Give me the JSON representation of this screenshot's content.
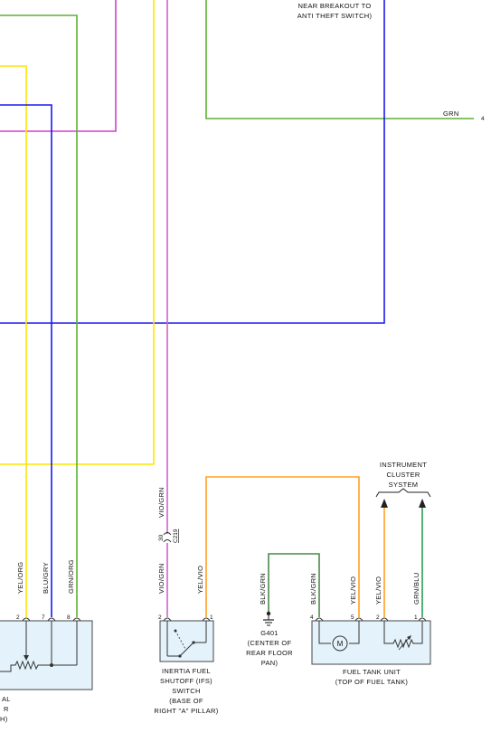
{
  "header": {
    "note_line1": "NEAR BREAKOUT TO",
    "note_line2": "ANTI THEFT SWITCH)"
  },
  "wires": {
    "grn_right": "GRN",
    "grn_right_pin": "4",
    "left_yel_org": "YEL/ORG",
    "left_blu_gry": "BLU/GRY",
    "left_grn_org": "GRN/ORG",
    "vio_grn_upper": "VIO/GRN",
    "vio_grn_lower": "VIO/GRN",
    "ifs_yel_vio": "YEL/VIO",
    "g401_blk_grn": "BLK/GRN",
    "tank_blk_grn": "BLK/GRN",
    "tank_yel_vio_a": "YEL/VIO",
    "tank_yel_vio_b": "YEL/VIO",
    "tank_grn_blu": "GRN/BLU"
  },
  "connectors": {
    "c219_pin": "30",
    "c219_name": "C219"
  },
  "pins": {
    "left_2": "2",
    "left_7": "7",
    "left_8": "8",
    "ifs_2": "2",
    "ifs_1": "1",
    "tank_4": "4",
    "tank_5": "5",
    "tank_2": "2",
    "tank_1": "1"
  },
  "components": {
    "left_partial": {
      "line1": "AL",
      "line2": "R",
      "line3": "H)"
    },
    "ifs": {
      "line1": "INERTIA FUEL",
      "line2": "SHUTOFF (IFS)",
      "line3": "SWITCH",
      "line4": "(BASE OF",
      "line5": "RIGHT \"A\" PILLAR)"
    },
    "g401": {
      "line1": "G401",
      "line2": "(CENTER OF",
      "line3": "REAR FLOOR",
      "line4": "PAN)"
    },
    "fuel_tank": {
      "line1": "FUEL TANK UNIT",
      "line2": "(TOP OF FUEL TANK)",
      "motor": "M"
    },
    "instrument_cluster": {
      "line1": "INSTRUMENT",
      "line2": "CLUSTER",
      "line3": "SYSTEM"
    }
  },
  "colors": {
    "yellow": "#ffe600",
    "green": "#5cb030",
    "magenta": "#d040d0",
    "vio_grn": "#cc66cc",
    "blue": "#1a1aee",
    "orange": "#ffa020",
    "blk_grn": "#4a8a4a",
    "grn_blu": "#2e9a5a",
    "box_fill": "#e4f3fb",
    "box_stroke": "#444444"
  }
}
